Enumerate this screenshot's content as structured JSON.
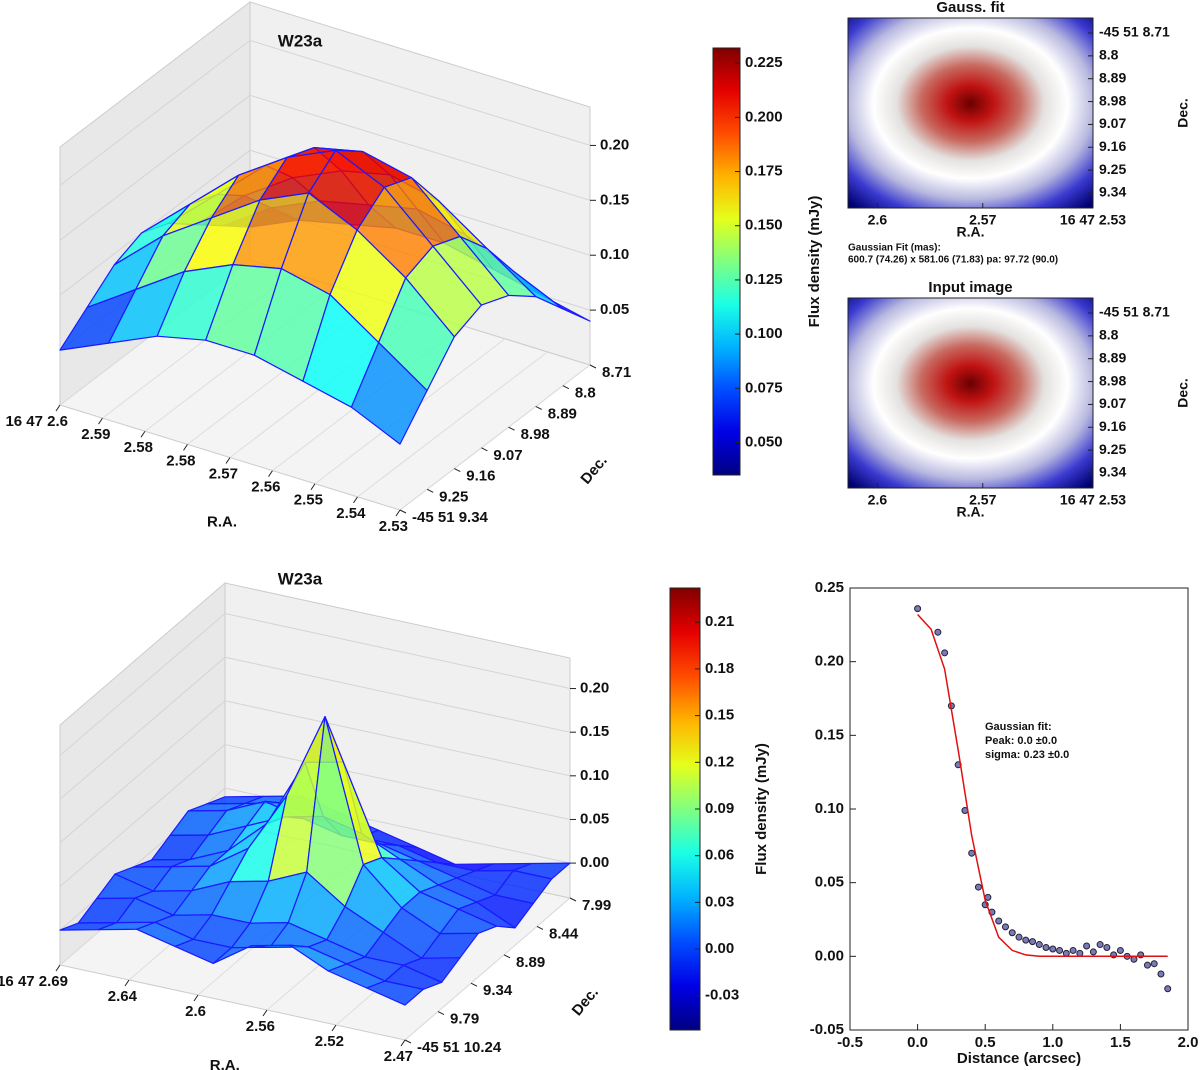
{
  "chart_data": [
    {
      "type": "surface",
      "title": "W23a",
      "xlabel": "R.A.",
      "ylabel": "Dec.",
      "xtick_labels": [
        "16 47 2.6",
        "2.59",
        "2.58",
        "2.58",
        "2.57",
        "2.56",
        "2.55",
        "2.54",
        "2.53"
      ],
      "ytick_labels": [
        "8.71",
        "8.8",
        "8.89",
        "8.98",
        "9.07",
        "9.16",
        "9.25",
        "-45 51 9.34"
      ],
      "zlim": [
        0,
        0.235
      ],
      "zticks": [
        0.05,
        {
          "value": 0.1,
          "label": "0.10"
        },
        0.15,
        {
          "value": 0.2,
          "label": "0.20"
        }
      ],
      "clim": [
        0.035,
        0.232
      ],
      "clabel": "Flux density (mJy)",
      "cticks": [
        {
          "value": 0.05,
          "label": "0.050"
        },
        0.075,
        {
          "value": 0.1,
          "label": "0.100"
        },
        0.125,
        {
          "value": 0.15,
          "label": "0.150"
        },
        0.175,
        {
          "value": 0.2,
          "label": "0.200"
        },
        0.225
      ],
      "edge_color": "#1a1aff",
      "z": [
        [
          0.03,
          0.05,
          0.07,
          0.09,
          0.1,
          0.09,
          0.07,
          0.05
        ],
        [
          0.05,
          0.08,
          0.11,
          0.13,
          0.14,
          0.13,
          0.1,
          0.07
        ],
        [
          0.06,
          0.1,
          0.14,
          0.17,
          0.18,
          0.16,
          0.13,
          0.09
        ],
        [
          0.07,
          0.11,
          0.16,
          0.2,
          0.21,
          0.19,
          0.15,
          0.1
        ],
        [
          0.07,
          0.12,
          0.17,
          0.21,
          0.23,
          0.21,
          0.16,
          0.1
        ],
        [
          0.06,
          0.11,
          0.16,
          0.2,
          0.21,
          0.19,
          0.15,
          0.09
        ],
        [
          0.05,
          0.09,
          0.13,
          0.16,
          0.17,
          0.16,
          0.12,
          0.08
        ],
        [
          0.04,
          0.07,
          0.1,
          0.12,
          0.13,
          0.12,
          0.09,
          0.06
        ]
      ]
    },
    {
      "type": "image",
      "title": "Gauss. fit",
      "xlabel": "R.A.",
      "ylabel": "Dec.",
      "xtick_labels": [
        "2.6",
        "2.57",
        "16 47 2.53"
      ],
      "ytick_labels": [
        "-45 51 8.71",
        "8.8",
        "8.89",
        "8.98",
        "9.07",
        "9.16",
        "9.25",
        "9.34"
      ],
      "annotation": [
        "Gaussian Fit (mas):",
        "600.7 (74.26) x 581.06 (71.83) pa: 97.72 (90.0)"
      ]
    },
    {
      "type": "image",
      "title": "Input image",
      "xlabel": "R.A.",
      "ylabel": "Dec.",
      "xtick_labels": [
        "2.6",
        "2.57",
        "16 47 2.53"
      ],
      "ytick_labels": [
        "-45 51 8.71",
        "8.8",
        "8.89",
        "8.98",
        "9.07",
        "9.16",
        "9.25",
        "9.34"
      ]
    },
    {
      "type": "surface",
      "title": "W23a",
      "xlabel": "R.A.",
      "ylabel": "Dec.",
      "xtick_labels": [
        "16 47 2.69",
        "2.64",
        "2.6",
        "2.56",
        "2.52",
        "2.47"
      ],
      "ytick_labels": [
        "7.99",
        "8.44",
        "8.89",
        "9.34",
        "9.79",
        "-45 51 10.24"
      ],
      "zlim": [
        -0.04,
        0.235
      ],
      "zticks": [
        {
          "value": 0,
          "label": "0.00"
        },
        0.05,
        {
          "value": 0.1,
          "label": "0.10"
        },
        0.15,
        {
          "value": 0.2,
          "label": "0.20"
        }
      ],
      "clim": [
        -0.052,
        0.232
      ],
      "clabel": "Flux density (mJy)",
      "cticks": [
        -0.03,
        {
          "value": 0,
          "label": "0.00"
        },
        0.03,
        0.06,
        0.09,
        0.12,
        0.15,
        0.18,
        0.21
      ],
      "edge_color": "#1a1aff",
      "z": [
        [
          -0.01,
          0.0,
          0.01,
          0.0,
          -0.01,
          0.0,
          0.01,
          0.0,
          -0.01,
          0.0
        ],
        [
          0.0,
          0.01,
          0.02,
          0.01,
          0.0,
          0.01,
          0.0,
          0.01,
          0.0,
          0.01
        ],
        [
          0.01,
          0.02,
          0.04,
          0.03,
          0.02,
          0.02,
          0.01,
          0.0,
          0.01,
          0.02
        ],
        [
          0.0,
          0.01,
          0.03,
          0.05,
          0.06,
          0.05,
          0.03,
          0.01,
          0.0,
          0.01
        ],
        [
          -0.01,
          0.0,
          0.02,
          0.06,
          0.14,
          0.12,
          0.04,
          0.01,
          0.0,
          0.0
        ],
        [
          -0.02,
          0.0,
          0.02,
          0.05,
          0.15,
          0.22,
          0.06,
          0.02,
          0.01,
          0.03
        ],
        [
          -0.03,
          -0.01,
          0.01,
          0.03,
          0.05,
          0.06,
          0.03,
          0.01,
          0.02,
          0.04
        ],
        [
          -0.02,
          -0.01,
          0.0,
          0.01,
          0.02,
          0.02,
          0.01,
          0.0,
          0.01,
          0.02
        ],
        [
          -0.01,
          0.0,
          -0.01,
          0.0,
          0.01,
          0.0,
          -0.01,
          0.0,
          0.0,
          0.01
        ],
        [
          0.0,
          0.0,
          -0.01,
          -0.02,
          0.0,
          0.01,
          0.0,
          -0.01,
          0.0,
          0.0
        ]
      ]
    },
    {
      "type": "scatter",
      "xlabel": "Distance (arcsec)",
      "xlim": [
        -0.5,
        2.0
      ],
      "xticks": [
        -0.5,
        {
          "value": 0,
          "label": "0.0"
        },
        0.5,
        {
          "value": 1,
          "label": "1.0"
        },
        1.5,
        {
          "value": 2,
          "label": "2.0"
        }
      ],
      "ylim": [
        -0.05,
        0.25
      ],
      "yticks": [
        -0.05,
        {
          "value": 0,
          "label": "0.00"
        },
        0.05,
        {
          "value": 0.1,
          "label": "0.10"
        },
        0.15,
        {
          "value": 0.2,
          "label": "0.20"
        },
        0.25
      ],
      "color": "#7a7ab8",
      "x": [
        0.0,
        0.15,
        0.2,
        0.25,
        0.3,
        0.35,
        0.4,
        0.45,
        0.5,
        0.52,
        0.55,
        0.6,
        0.65,
        0.7,
        0.75,
        0.8,
        0.85,
        0.9,
        0.95,
        1.0,
        1.05,
        1.1,
        1.15,
        1.2,
        1.25,
        1.3,
        1.35,
        1.4,
        1.45,
        1.5,
        1.55,
        1.6,
        1.65,
        1.7,
        1.75,
        1.8,
        1.85
      ],
      "values": [
        0.236,
        0.22,
        0.206,
        0.17,
        0.13,
        0.099,
        0.07,
        0.047,
        0.035,
        0.04,
        0.03,
        0.024,
        0.02,
        0.016,
        0.013,
        0.011,
        0.01,
        0.008,
        0.006,
        0.005,
        0.004,
        0.002,
        0.004,
        0.002,
        0.007,
        0.003,
        0.008,
        0.006,
        0.001,
        0.004,
        0.0,
        -0.002,
        0.001,
        -0.006,
        -0.005,
        -0.012,
        -0.022
      ],
      "line": {
        "color": "#e01010",
        "x": [
          0,
          0.1,
          0.2,
          0.3,
          0.4,
          0.5,
          0.6,
          0.7,
          0.8,
          0.9,
          1.0,
          1.2,
          1.4,
          1.6,
          1.85
        ],
        "values": [
          0.232,
          0.222,
          0.195,
          0.14,
          0.082,
          0.038,
          0.013,
          0.004,
          0.001,
          0,
          0,
          0,
          0,
          0,
          0
        ]
      },
      "annotation": [
        "Gaussian fit:",
        "Peak: 0.0 ±0.0",
        "sigma: 0.23 ±0.0"
      ]
    }
  ]
}
